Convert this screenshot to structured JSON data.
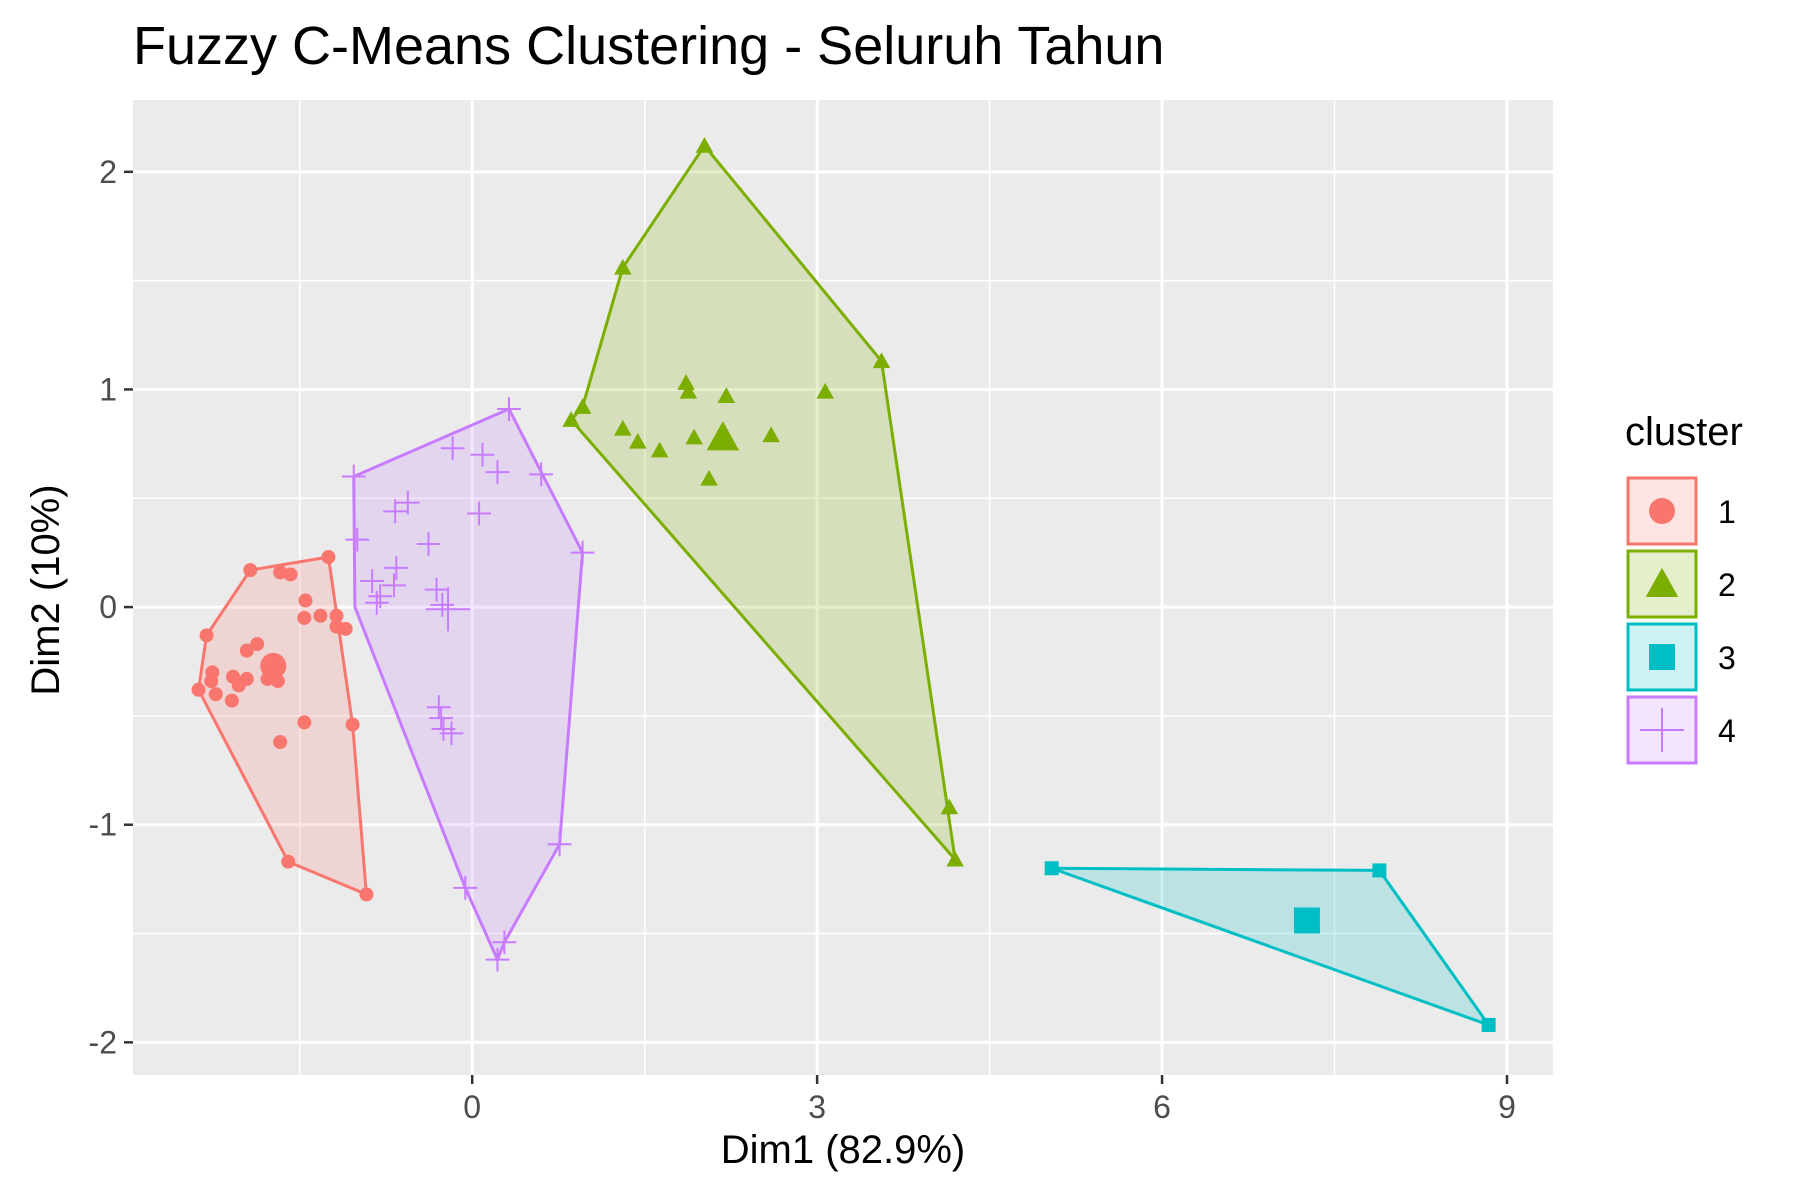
{
  "chart_data": {
    "type": "scatter",
    "title": "Fuzzy C-Means Clustering - Seluruh Tahun",
    "xlabel": "Dim1 (82.9%)",
    "ylabel": "Dim2 (10%)",
    "xlim": [
      -2.95,
      9.4
    ],
    "ylim": [
      -2.15,
      2.33
    ],
    "x_ticks": [
      0,
      3,
      6,
      9
    ],
    "x_tick_labels": [
      "0",
      "3",
      "6",
      "9"
    ],
    "y_ticks": [
      -2,
      -1,
      0,
      1,
      2
    ],
    "y_tick_labels": [
      "-2",
      "-1",
      "0",
      "1",
      "2"
    ],
    "grid": true,
    "legend": {
      "title": "cluster",
      "position": "right",
      "entries": [
        "1",
        "2",
        "3",
        "4"
      ]
    },
    "colors": {
      "panel_background": "#ebebeb",
      "grid": "#ffffff",
      "cluster_1": "#f8766d",
      "cluster_2": "#7cae00",
      "cluster_3": "#00bfc4",
      "cluster_4": "#c77cff"
    },
    "series": [
      {
        "name": "1",
        "shape": "circle",
        "color": "#f8766d",
        "center": [
          -1.73,
          -0.27
        ],
        "hull": [
          [
            -1.93,
            0.17
          ],
          [
            -1.25,
            0.23
          ],
          [
            -1.04,
            -0.54
          ],
          [
            -0.92,
            -1.32
          ],
          [
            -1.6,
            -1.17
          ],
          [
            -2.38,
            -0.38
          ],
          [
            -2.31,
            -0.13
          ]
        ],
        "points": [
          [
            -1.93,
            0.17
          ],
          [
            -1.67,
            0.16
          ],
          [
            -1.58,
            0.15
          ],
          [
            -1.25,
            0.23
          ],
          [
            -1.45,
            0.03
          ],
          [
            -1.46,
            -0.05
          ],
          [
            -1.32,
            -0.04
          ],
          [
            -1.18,
            -0.04
          ],
          [
            -1.18,
            -0.09
          ],
          [
            -1.1,
            -0.1
          ],
          [
            -1.96,
            -0.2
          ],
          [
            -1.87,
            -0.17
          ],
          [
            -1.78,
            -0.33
          ],
          [
            -1.74,
            -0.3
          ],
          [
            -1.69,
            -0.34
          ],
          [
            -2.26,
            -0.3
          ],
          [
            -2.27,
            -0.34
          ],
          [
            -2.08,
            -0.32
          ],
          [
            -2.03,
            -0.36
          ],
          [
            -1.96,
            -0.33
          ],
          [
            -2.38,
            -0.38
          ],
          [
            -2.23,
            -0.4
          ],
          [
            -2.09,
            -0.43
          ],
          [
            -2.31,
            -0.13
          ],
          [
            -1.46,
            -0.53
          ],
          [
            -1.67,
            -0.62
          ],
          [
            -1.04,
            -0.54
          ],
          [
            -1.6,
            -1.17
          ],
          [
            -0.92,
            -1.32
          ]
        ]
      },
      {
        "name": "2",
        "shape": "triangle",
        "color": "#7cae00",
        "center": [
          2.18,
          0.78
        ],
        "hull": [
          [
            2.02,
            2.12
          ],
          [
            3.56,
            1.13
          ],
          [
            4.2,
            -1.16
          ],
          [
            0.86,
            0.86
          ],
          [
            0.96,
            0.92
          ],
          [
            1.31,
            1.56
          ]
        ],
        "points": [
          [
            2.02,
            2.12
          ],
          [
            1.31,
            1.56
          ],
          [
            3.56,
            1.13
          ],
          [
            1.86,
            1.03
          ],
          [
            1.88,
            0.99
          ],
          [
            2.21,
            0.97
          ],
          [
            3.07,
            0.99
          ],
          [
            0.96,
            0.92
          ],
          [
            0.86,
            0.86
          ],
          [
            1.31,
            0.82
          ],
          [
            1.44,
            0.76
          ],
          [
            1.63,
            0.72
          ],
          [
            1.93,
            0.78
          ],
          [
            2.6,
            0.79
          ],
          [
            2.06,
            0.59
          ],
          [
            4.15,
            -0.92
          ],
          [
            4.2,
            -1.16
          ]
        ]
      },
      {
        "name": "3",
        "shape": "square",
        "color": "#00bfc4",
        "center": [
          7.26,
          -1.44
        ],
        "hull": [
          [
            5.04,
            -1.2
          ],
          [
            7.89,
            -1.21
          ],
          [
            8.84,
            -1.92
          ]
        ],
        "points": [
          [
            5.04,
            -1.2
          ],
          [
            7.89,
            -1.21
          ],
          [
            8.84,
            -1.92
          ]
        ]
      },
      {
        "name": "4",
        "shape": "plus",
        "color": "#c77cff",
        "center": [
          -0.21,
          -0.01
        ],
        "hull": [
          [
            -1.03,
            0.6
          ],
          [
            0.32,
            0.91
          ],
          [
            0.96,
            0.25
          ],
          [
            0.76,
            -1.09
          ],
          [
            0.28,
            -1.54
          ],
          [
            0.22,
            -1.62
          ],
          [
            -0.06,
            -1.29
          ],
          [
            -1.02,
            0.0
          ]
        ],
        "points": [
          [
            0.32,
            0.91
          ],
          [
            -0.17,
            0.73
          ],
          [
            0.09,
            0.7
          ],
          [
            0.22,
            0.62
          ],
          [
            0.6,
            0.61
          ],
          [
            -1.03,
            0.6
          ],
          [
            -0.56,
            0.48
          ],
          [
            -0.67,
            0.44
          ],
          [
            0.06,
            0.43
          ],
          [
            -0.38,
            0.29
          ],
          [
            -1.0,
            0.31
          ],
          [
            0.96,
            0.25
          ],
          [
            -0.66,
            0.18
          ],
          [
            -0.87,
            0.12
          ],
          [
            -0.68,
            0.1
          ],
          [
            -0.8,
            0.05
          ],
          [
            -0.31,
            0.08
          ],
          [
            -0.26,
            0.01
          ],
          [
            -0.83,
            0.02
          ],
          [
            -0.29,
            -0.46
          ],
          [
            -0.27,
            -0.51
          ],
          [
            -0.25,
            -0.56
          ],
          [
            -0.18,
            -0.58
          ],
          [
            0.76,
            -1.09
          ],
          [
            -0.06,
            -1.29
          ],
          [
            0.28,
            -1.54
          ],
          [
            0.22,
            -1.62
          ]
        ]
      }
    ]
  }
}
